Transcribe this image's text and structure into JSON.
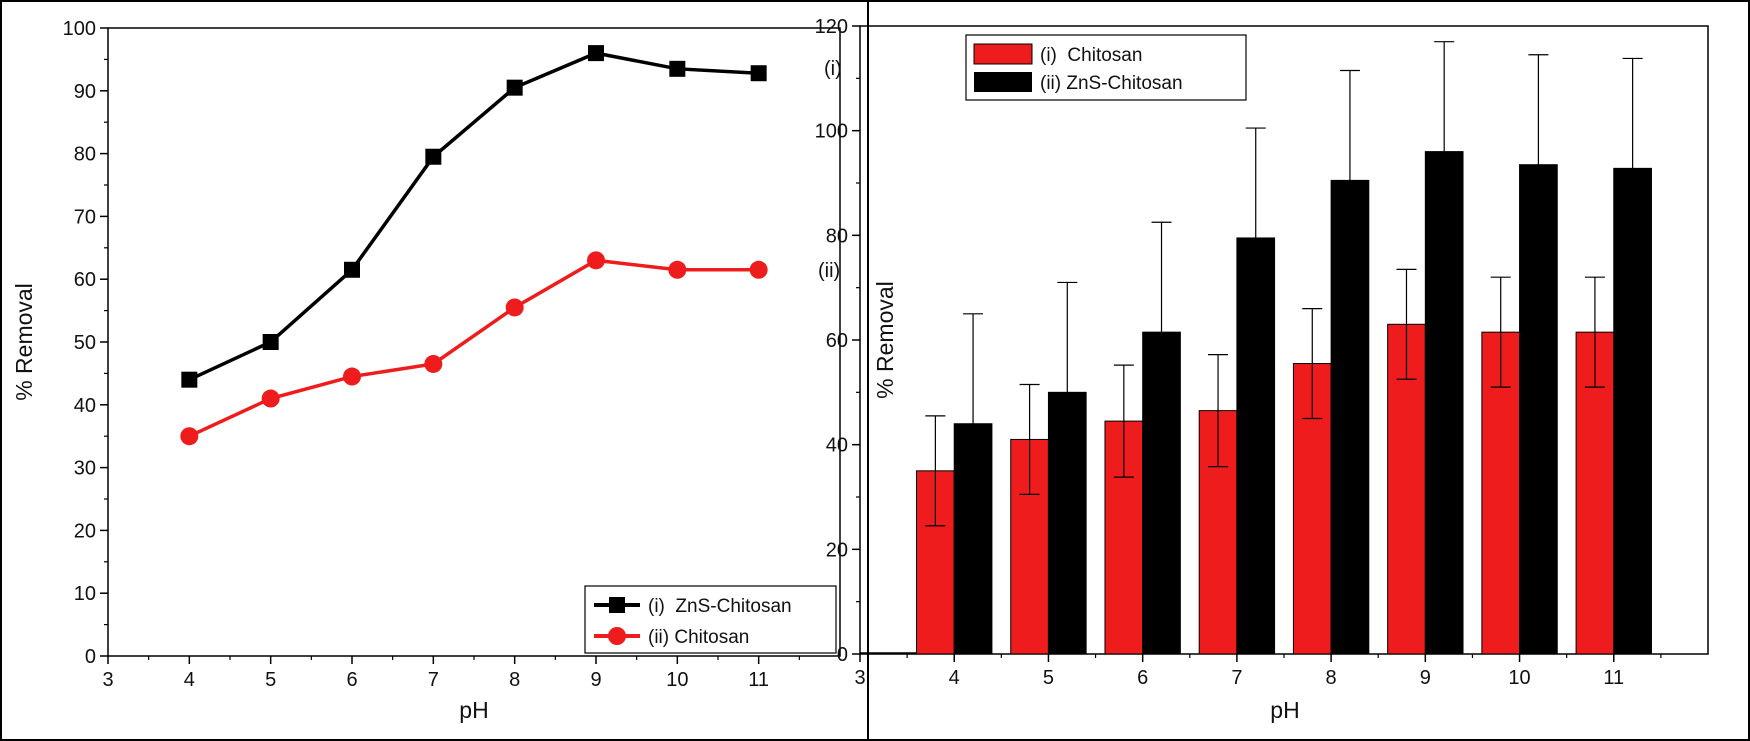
{
  "chart_data": [
    {
      "type": "line",
      "title": "",
      "xlabel": "pH",
      "ylabel": "% Removal",
      "xlim": [
        3,
        12
      ],
      "ylim": [
        0,
        100
      ],
      "xticks": [
        3,
        4,
        5,
        6,
        7,
        8,
        9,
        10,
        11
      ],
      "yticks": [
        0,
        10,
        20,
        30,
        40,
        50,
        60,
        70,
        80,
        90,
        100
      ],
      "grid": false,
      "legend_position": "bottom-right",
      "x": [
        4,
        5,
        6,
        7,
        8,
        9,
        10,
        11
      ],
      "series": [
        {
          "name": "(i)  ZnS-Chitosan",
          "marker": "square",
          "color": "#000000",
          "annotation": "(i)",
          "values": [
            44,
            50,
            61.5,
            79.5,
            90.5,
            96,
            93.5,
            92.8
          ]
        },
        {
          "name": "(ii) Chitosan",
          "marker": "circle",
          "color": "#ee1c1c",
          "annotation": "(ii)",
          "values": [
            35,
            41,
            44.5,
            46.5,
            55.5,
            63,
            61.5,
            61.5
          ]
        }
      ]
    },
    {
      "type": "bar",
      "title": "",
      "xlabel": "pH",
      "ylabel": "% Removal",
      "xlim": [
        3,
        12
      ],
      "ylim": [
        0,
        120
      ],
      "xticks": [
        3,
        4,
        5,
        6,
        7,
        8,
        9,
        10,
        11
      ],
      "yticks": [
        0,
        20,
        40,
        60,
        80,
        100,
        120
      ],
      "grid": false,
      "legend_position": "top-left",
      "categories": [
        4,
        5,
        6,
        7,
        8,
        9,
        10,
        11
      ],
      "series": [
        {
          "name": "(i)  Chitosan",
          "color": "#ee1c1c",
          "values": [
            35,
            41,
            44.5,
            46.5,
            55.5,
            63,
            61.5,
            61.5
          ],
          "error": [
            10.5,
            10.5,
            10.7,
            10.7,
            10.5,
            10.5,
            10.5,
            10.5
          ]
        },
        {
          "name": "(ii) ZnS-Chitosan",
          "color": "#000000",
          "values": [
            44,
            50,
            61.5,
            79.5,
            90.5,
            96,
            93.5,
            92.8
          ],
          "error": [
            21,
            21,
            21,
            21,
            21,
            21,
            21,
            21
          ]
        }
      ]
    }
  ]
}
